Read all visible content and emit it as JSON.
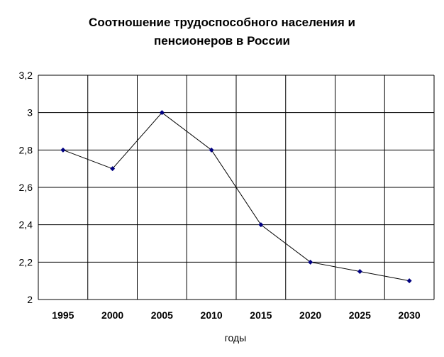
{
  "chart_data": {
    "type": "line",
    "title_lines": [
      "Соотношение трудоспособного населения и",
      "пенсионеров в России"
    ],
    "xlabel": "годы",
    "ylabel": "",
    "categories": [
      "1995",
      "2000",
      "2005",
      "2010",
      "2015",
      "2020",
      "2025",
      "2030"
    ],
    "series": [
      {
        "values": [
          2.8,
          2.7,
          3.0,
          2.8,
          2.4,
          2.2,
          2.15,
          2.1
        ]
      }
    ],
    "ylim": [
      2,
      3.2
    ],
    "yticks": [
      "2",
      "2,2",
      "2,4",
      "2,6",
      "2,8",
      "3",
      "3,2"
    ],
    "grid": true,
    "line_color": "#000000",
    "marker_color": "#000080"
  }
}
